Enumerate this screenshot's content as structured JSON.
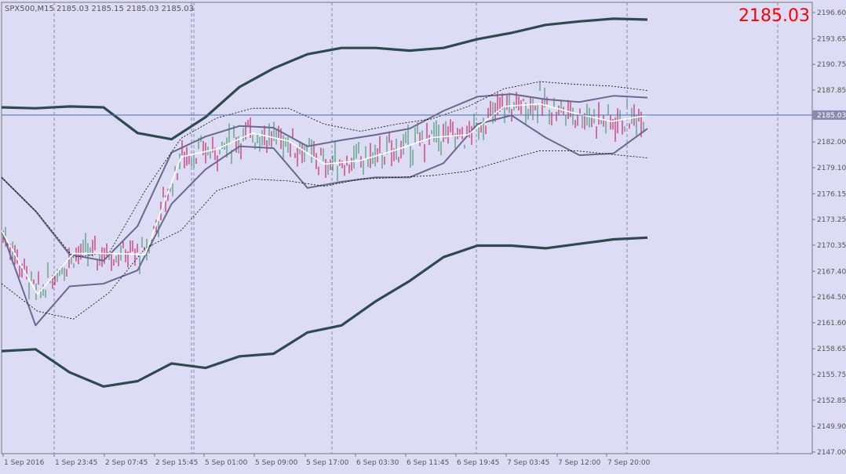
{
  "header": {
    "symbol_line": "SPX500,M15  2185.03 2185.15 2185.03 2185.03",
    "big_price": "2185.03"
  },
  "price_tag": "2185.03",
  "colors": {
    "background": "#dcdcf5",
    "axis_text": "#555555",
    "grid": "#8888aa",
    "outer_band": "#2f4a4f",
    "mid_band": "#6a6890",
    "dotted_band": "#000000",
    "white_ma": "#ffffff",
    "bull_candle": "#2e8b57",
    "bear_candle": "#c8004a",
    "current_price_line": "#4a6ea8",
    "big_price": "#ff0000"
  },
  "chart_data": {
    "type": "line",
    "instrument": "SPX500",
    "timeframe": "M15",
    "ylim": [
      2147.0,
      2196.6
    ],
    "y_ticks": [
      "2196.60",
      "2193.65",
      "2190.75",
      "2187.85",
      "2185.03",
      "2182.00",
      "2179.10",
      "2176.15",
      "2173.25",
      "2170.35",
      "2167.40",
      "2164.50",
      "2161.60",
      "2158.65",
      "2155.75",
      "2152.85",
      "2149.90",
      "2147.00"
    ],
    "x_ticks": [
      "1 Sep 2016",
      "1 Sep 23:45",
      "2 Sep 07:45",
      "2 Sep 15:45",
      "5 Sep 01:00",
      "5 Sep 09:00",
      "5 Sep 17:00",
      "6 Sep 03:30",
      "6 Sep 11:45",
      "6 Sep 19:45",
      "7 Sep 03:45",
      "7 Sep 12:00",
      "7 Sep 20:00"
    ],
    "current_price": 2185.03,
    "series": [
      {
        "style": "outer",
        "values": [
          2185.9,
          2185.8,
          2186.0,
          2185.9,
          2183.0,
          2182.3,
          2184.8,
          2188.2,
          2190.3,
          2191.9,
          2192.6,
          2192.6,
          2192.3,
          2192.6,
          2193.6,
          2194.3,
          2195.2,
          2195.6,
          2195.9,
          2195.8
        ]
      },
      {
        "style": "outer",
        "values": [
          2158.4,
          2158.6,
          2156.0,
          2154.4,
          2155.0,
          2157.0,
          2156.5,
          2157.8,
          2158.1,
          2160.5,
          2161.3,
          2164.0,
          2166.3,
          2169.0,
          2170.3,
          2170.3,
          2170.0,
          2170.5,
          2171.0,
          2171.2
        ]
      },
      {
        "style": "mid",
        "values": [
          2178.0,
          2174.2,
          2169.3,
          2168.6,
          2172.5,
          2180.8,
          2182.6,
          2183.8,
          2183.6,
          2181.5,
          2182.2,
          2182.8,
          2183.5,
          2185.5,
          2187.1,
          2187.4,
          2186.8,
          2186.5,
          2187.2,
          2187.0
        ]
      },
      {
        "style": "mid",
        "values": [
          2172.0,
          2161.3,
          2165.7,
          2166.0,
          2167.5,
          2175.0,
          2178.9,
          2181.5,
          2181.3,
          2176.8,
          2177.5,
          2178.0,
          2178.0,
          2179.6,
          2184.0,
          2185.0,
          2182.5,
          2180.5,
          2180.7,
          2183.5
        ]
      },
      {
        "style": "dotted",
        "values": [
          2178.0,
          2174.0,
          2169.0,
          2169.5,
          2176.5,
          2182.4,
          2184.7,
          2185.8,
          2185.8,
          2184.0,
          2183.2,
          2184.0,
          2184.6,
          2186.0,
          2188.0,
          2188.8,
          2188.5,
          2188.3,
          2187.8
        ]
      },
      {
        "style": "dotted",
        "values": [
          2166.0,
          2162.9,
          2162.0,
          2165.0,
          2170.0,
          2172.0,
          2176.5,
          2177.8,
          2177.6,
          2177.0,
          2177.8,
          2178.0,
          2178.2,
          2178.7,
          2179.9,
          2181.0,
          2181.0,
          2180.6,
          2180.2
        ]
      },
      {
        "style": "ma",
        "values": [
          2172.0,
          2164.8,
          2169.4,
          2169.4,
          2169.3,
          2180.3,
          2181.2,
          2183.0,
          2182.1,
          2179.5,
          2179.9,
          2181.1,
          2182.5,
          2182.8,
          2186.0,
          2186.3,
          2185.2,
          2184.3,
          2185.0
        ]
      }
    ]
  }
}
